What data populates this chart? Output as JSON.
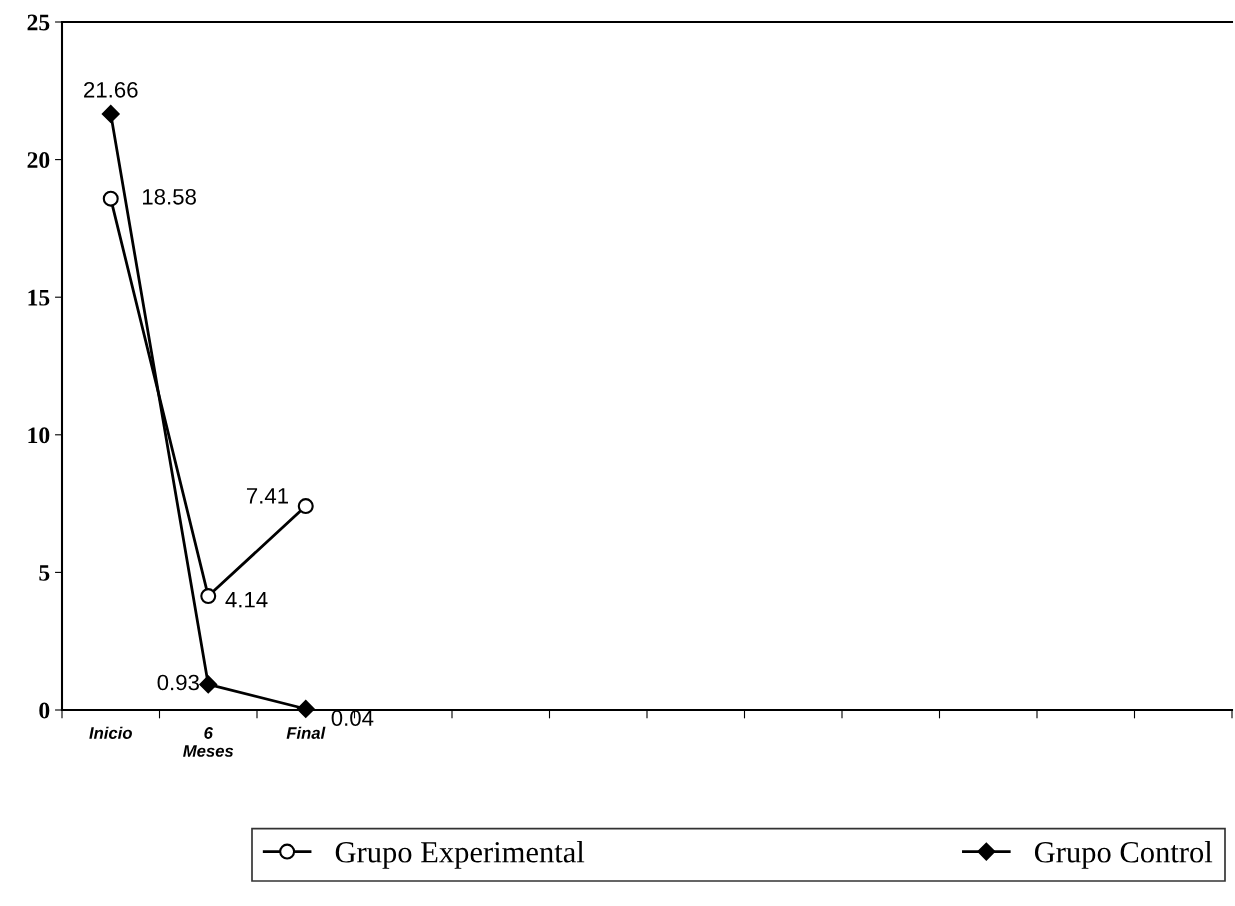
{
  "chart_data": {
    "type": "line",
    "categories": [
      "Inicio",
      "6\nMeses",
      "Final",
      null,
      null,
      null,
      null,
      null,
      null,
      null,
      null,
      null
    ],
    "series": [
      {
        "name": "Grupo Experimental",
        "color": "#000000",
        "marker": "circle",
        "values": [
          18.58,
          4.14,
          7.41,
          null,
          null,
          null,
          null,
          null,
          null,
          null,
          null,
          null
        ]
      },
      {
        "name": "Grupo Control",
        "color": "#000000",
        "marker": "diamond",
        "values": [
          21.66,
          0.93,
          0.04,
          null,
          null,
          null,
          null,
          null,
          null,
          null,
          null,
          null
        ]
      }
    ],
    "ylim": [
      0,
      25
    ],
    "yticks": [
      0,
      5,
      10,
      15,
      20,
      25
    ],
    "data_labels": true,
    "grid": false,
    "legend": "bottom",
    "line_style": "solid"
  }
}
